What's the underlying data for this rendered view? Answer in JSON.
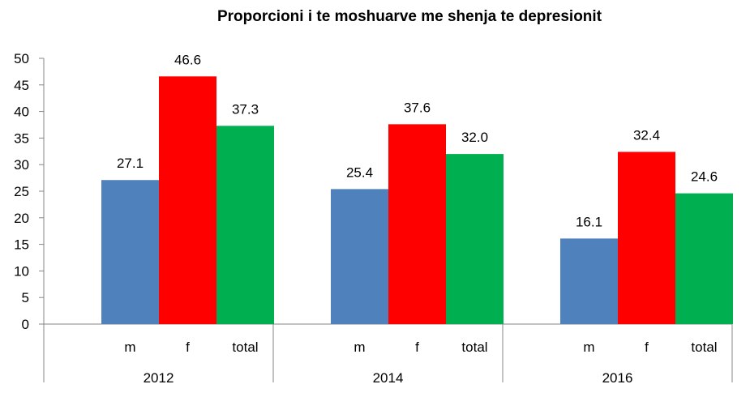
{
  "chart_data": {
    "type": "bar",
    "title": "Proporcioni i te moshuarve me shenja te depresionit",
    "groups": [
      "2012",
      "2014",
      "2016"
    ],
    "categories": [
      "m",
      "f",
      "total"
    ],
    "series": [
      {
        "group": "2012",
        "values": [
          27.1,
          46.6,
          37.3
        ]
      },
      {
        "group": "2014",
        "values": [
          25.4,
          37.6,
          32.0
        ]
      },
      {
        "group": "2016",
        "values": [
          16.1,
          32.4,
          24.6
        ]
      }
    ],
    "value_labels": [
      [
        "27.1",
        "46.6",
        "37.3"
      ],
      [
        "25.4",
        "37.6",
        "32.0"
      ],
      [
        "16.1",
        "32.4",
        "24.6"
      ]
    ],
    "colors": [
      "#4f81bd",
      "#ff0000",
      "#00b050"
    ],
    "y_ticks": [
      "0",
      "5",
      "10",
      "15",
      "20",
      "25",
      "30",
      "35",
      "40",
      "45",
      "50"
    ],
    "ylim": [
      0,
      50
    ],
    "grid": false,
    "legend": "none"
  }
}
